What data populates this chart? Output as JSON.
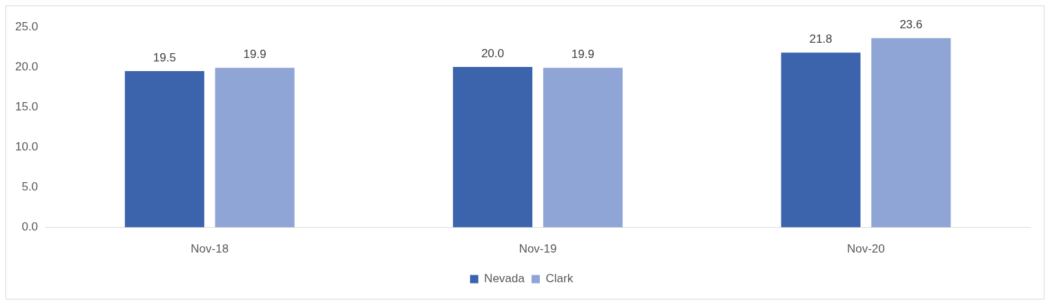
{
  "chart_data": {
    "type": "bar",
    "categories": [
      "Nov-18",
      "Nov-19",
      "Nov-20"
    ],
    "series": [
      {
        "name": "Nevada",
        "color": "#3c64ad",
        "values": [
          19.5,
          20.0,
          21.8
        ],
        "value_labels": [
          "19.5",
          "20.0",
          "21.8"
        ]
      },
      {
        "name": "Clark",
        "color": "#8fa5d6",
        "values": [
          19.9,
          19.9,
          23.6
        ],
        "value_labels": [
          "19.9",
          "19.9",
          "23.6"
        ]
      }
    ],
    "ylim": [
      0,
      25
    ],
    "yticks": [
      {
        "value": 0,
        "label": "0.0"
      },
      {
        "value": 5,
        "label": "5.0"
      },
      {
        "value": 10,
        "label": "10.0"
      },
      {
        "value": 15,
        "label": "15.0"
      },
      {
        "value": 20,
        "label": "20.0"
      },
      {
        "value": 25,
        "label": "25.0"
      }
    ],
    "grid": false,
    "legend": "bottom"
  }
}
